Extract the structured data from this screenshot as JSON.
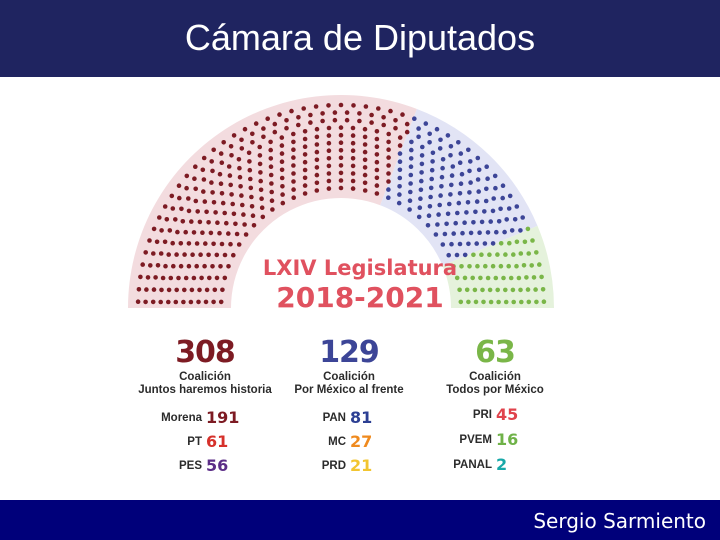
{
  "header": {
    "title": "Cámara de Diputados"
  },
  "footer": {
    "author": "Sergio Sarmiento"
  },
  "legislature": {
    "name": "LXIV Legislatura",
    "period": "2018-2021"
  },
  "colors": {
    "header_bg": "#1f2460",
    "footer_bg": "#00007a",
    "juntos": "#7d1b23",
    "frente": "#3c4597",
    "todos": "#7ab648",
    "legislature": "#e0515f"
  },
  "chart_data": {
    "type": "hemicycle",
    "title": "LXIV Legislatura 2018-2021",
    "total_seats": 500,
    "coalitions": [
      {
        "key": "juntos",
        "seats": 308,
        "label_line1": "Coalición",
        "label_line2": "Juntos haremos historia",
        "color": "#7d1b23",
        "parties": [
          {
            "name": "Morena",
            "seats": 191,
            "color": "#7d1b23"
          },
          {
            "name": "PT",
            "seats": 61,
            "color": "#d6312b"
          },
          {
            "name": "PES",
            "seats": 56,
            "color": "#5c2e87"
          }
        ]
      },
      {
        "key": "frente",
        "seats": 129,
        "label_line1": "Coalición",
        "label_line2": "Por México al frente",
        "color": "#3c4597",
        "parties": [
          {
            "name": "PAN",
            "seats": 81,
            "color": "#2c3f93"
          },
          {
            "name": "MC",
            "seats": 27,
            "color": "#ef8a1e"
          },
          {
            "name": "PRD",
            "seats": 21,
            "color": "#f2c530"
          }
        ]
      },
      {
        "key": "todos",
        "seats": 63,
        "label_line1": "Coalición",
        "label_line2": "Todos por México",
        "color": "#7ab648",
        "parties": [
          {
            "name": "PRI",
            "seats": 45,
            "color": "#e0434c"
          },
          {
            "name": "PVEM",
            "seats": 16,
            "color": "#6fb248"
          },
          {
            "name": "PANAL",
            "seats": 2,
            "color": "#17a8a8"
          }
        ]
      }
    ]
  }
}
